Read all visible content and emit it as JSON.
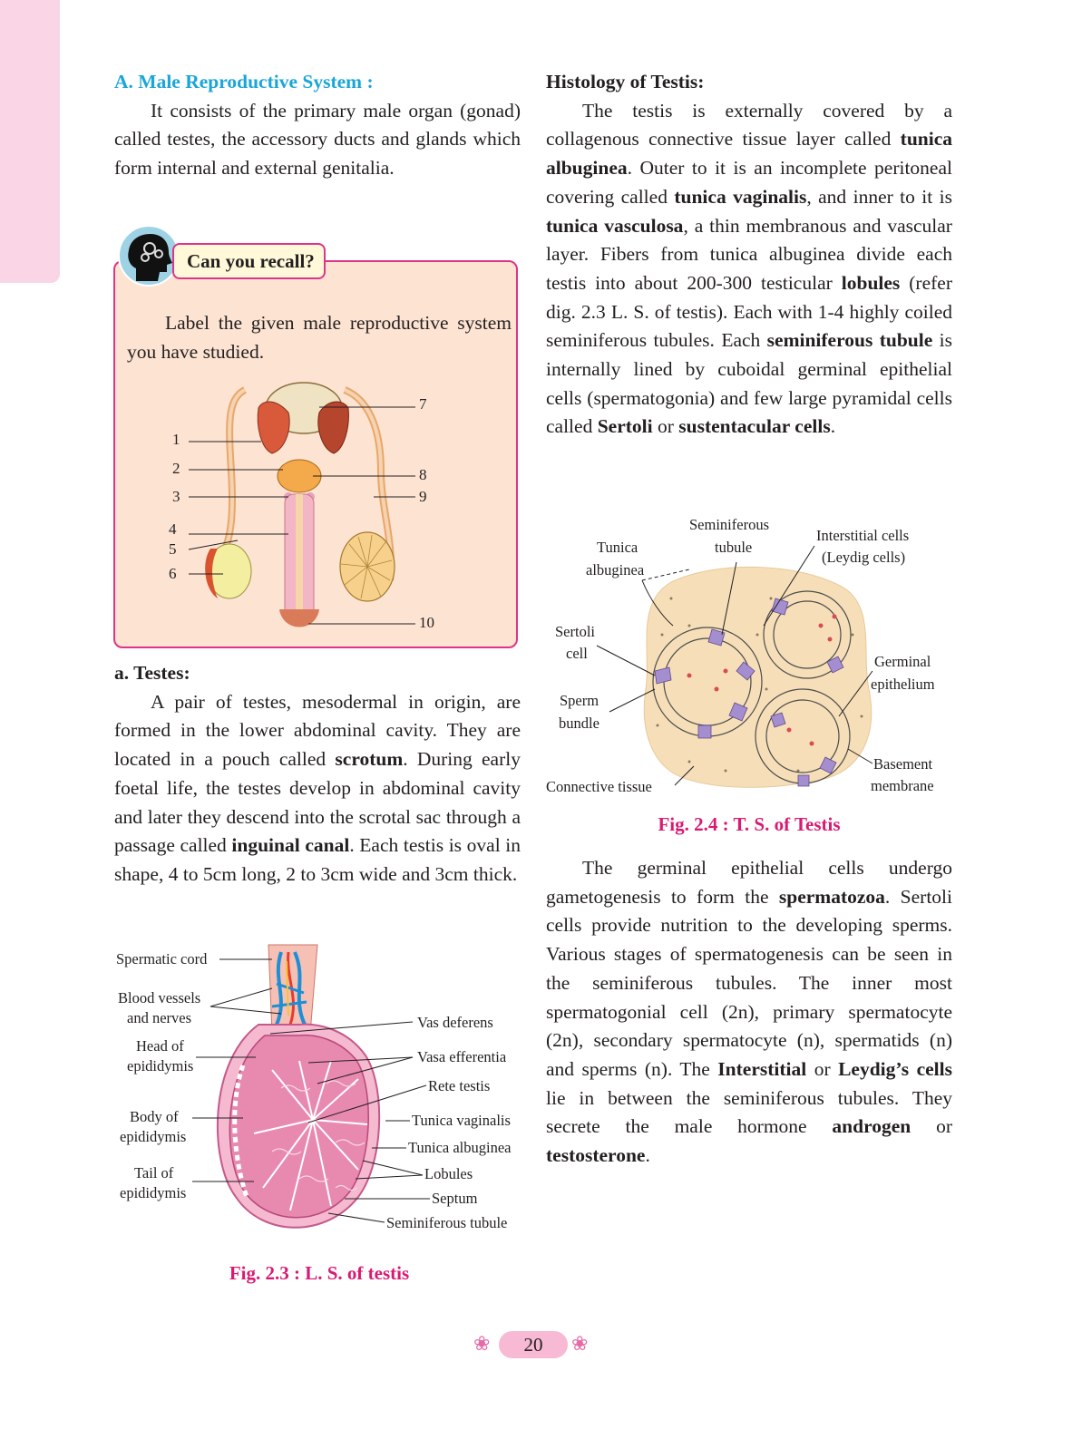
{
  "left": {
    "heading": "A.  Male Reproductive System :",
    "intro": "It consists of the primary male organ (gonad) called testes, the accessory ducts and glands which form internal and external genitalia.",
    "recall": {
      "title": "Can you recall?",
      "text": "Label the given male reproductive system you have studied.",
      "numbers": [
        "1",
        "2",
        "3",
        "4",
        "5",
        "6",
        "7",
        "8",
        "9",
        "10"
      ]
    },
    "testes_heading": "a. Testes:",
    "testes_p1": "A pair of testes, mesodermal in origin, are formed in the lower abdominal cavity. They are located in a pouch called ",
    "testes_b1": "scrotum",
    "testes_p2": ". During early foetal life, the testes develop in abdominal cavity and later they descend into the scrotal sac through a passage called ",
    "testes_b2": "inguinal canal",
    "testes_p3": ". Each testis is oval in shape, 4 to 5cm long,  2 to 3cm wide and 3cm thick.",
    "fig23": {
      "labels_left": [
        "Spermatic cord",
        "Blood vessels",
        "and nerves",
        "Head of",
        "epididymis",
        "Body of",
        "epididymis",
        "Tail of",
        "epididymis"
      ],
      "labels_right": [
        "Vas deferens",
        "Vasa efferentia",
        "Rete testis",
        "Tunica vaginalis",
        "Tunica albuginea",
        "Lobules",
        "Septum",
        "Seminiferous tubule"
      ],
      "caption": "Fig. 2.3 : L. S. of testis"
    }
  },
  "right": {
    "heading": "Histology of Testis:",
    "segments": [
      {
        "t": "The testis is externally covered by a collagenous connective tissue layer called "
      },
      {
        "b": "tunica albuginea"
      },
      {
        "t": ". Outer to it is an incomplete peritoneal covering called "
      },
      {
        "b": "tunica vaginalis"
      },
      {
        "t": ", and inner to it is "
      },
      {
        "b": "tunica vasculosa"
      },
      {
        "t": ", a thin membranous and vascular layer. Fibers from tunica albuginea divide each testis into about 200-300 testicular "
      },
      {
        "b": "lobules"
      },
      {
        "t": " (refer dig. 2.3 L. S. of testis). Each with 1-4 highly coiled seminiferous tubules. Each "
      },
      {
        "b": "seminiferous tubule"
      },
      {
        "t": " is internally lined by cuboidal germinal epithelial cells (spermatogonia) and few large pyramidal cells called "
      },
      {
        "b": "Sertoli"
      },
      {
        "t": " or "
      },
      {
        "b": "sustentacular cells"
      },
      {
        "t": "."
      }
    ],
    "fig24": {
      "labels": [
        "Seminiferous",
        "tubule",
        "Tunica",
        "albuginea",
        "Interstitial cells",
        "(Leydig cells)",
        "Sertoli",
        "cell",
        "Germinal",
        "epithelium",
        "Sperm",
        "bundle",
        "Basement",
        "membrane",
        "Connective tissue"
      ],
      "caption": "Fig. 2.4 : T. S. of Testis"
    },
    "segments2": [
      {
        "t": "The germinal epithelial cells undergo gametogenesis to form the "
      },
      {
        "b": "spermatozoa"
      },
      {
        "t": ". Sertoli cells provide nutrition to the developing sperms. Various stages of spermatogenesis can be seen in the seminiferous tubules. The inner most spermatogonial cell (2n), primary spermatocyte (2n), secondary spermatocyte (n), spermatids (n) and sperms (n). The "
      },
      {
        "b": "Interstitial"
      },
      {
        "t": " or "
      },
      {
        "b": "Leydig’s cells"
      },
      {
        "t": " lie in between the seminiferous tubules. They secrete the male hormone "
      },
      {
        "b": "androgen"
      },
      {
        "t": " or "
      },
      {
        "b": "testosterone"
      },
      {
        "t": "."
      }
    ]
  },
  "page_number": "20",
  "colors": {
    "heading": "#1aa6d8",
    "caption": "#d81b72",
    "side_tab": "#f9d5e5",
    "box": "#fde3d2",
    "border": "#e0338a"
  }
}
